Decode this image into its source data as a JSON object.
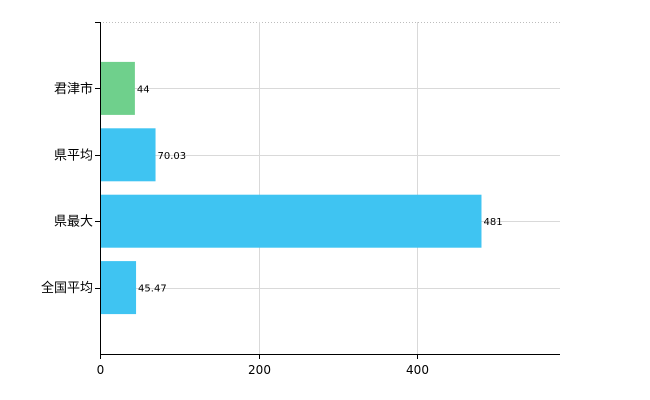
{
  "chart_data": {
    "type": "bar",
    "orientation": "horizontal",
    "categories": [
      "君津市",
      "県平均",
      "県最大",
      "全国平均"
    ],
    "values": [
      44,
      70.03,
      481,
      45.47
    ],
    "data_labels": [
      "44",
      "70.03",
      "481",
      "45.47"
    ],
    "bar_colors": [
      "#6fd08c",
      "#3fc4f2",
      "#3fc4f2",
      "#3fc4f2"
    ],
    "title": "",
    "xlabel": "",
    "ylabel": "",
    "xlim": [
      0,
      580
    ],
    "x_ticks": [
      0,
      200,
      400
    ],
    "x_tick_labels": [
      "0",
      "200",
      "400"
    ],
    "grid": true,
    "legend": "none"
  }
}
